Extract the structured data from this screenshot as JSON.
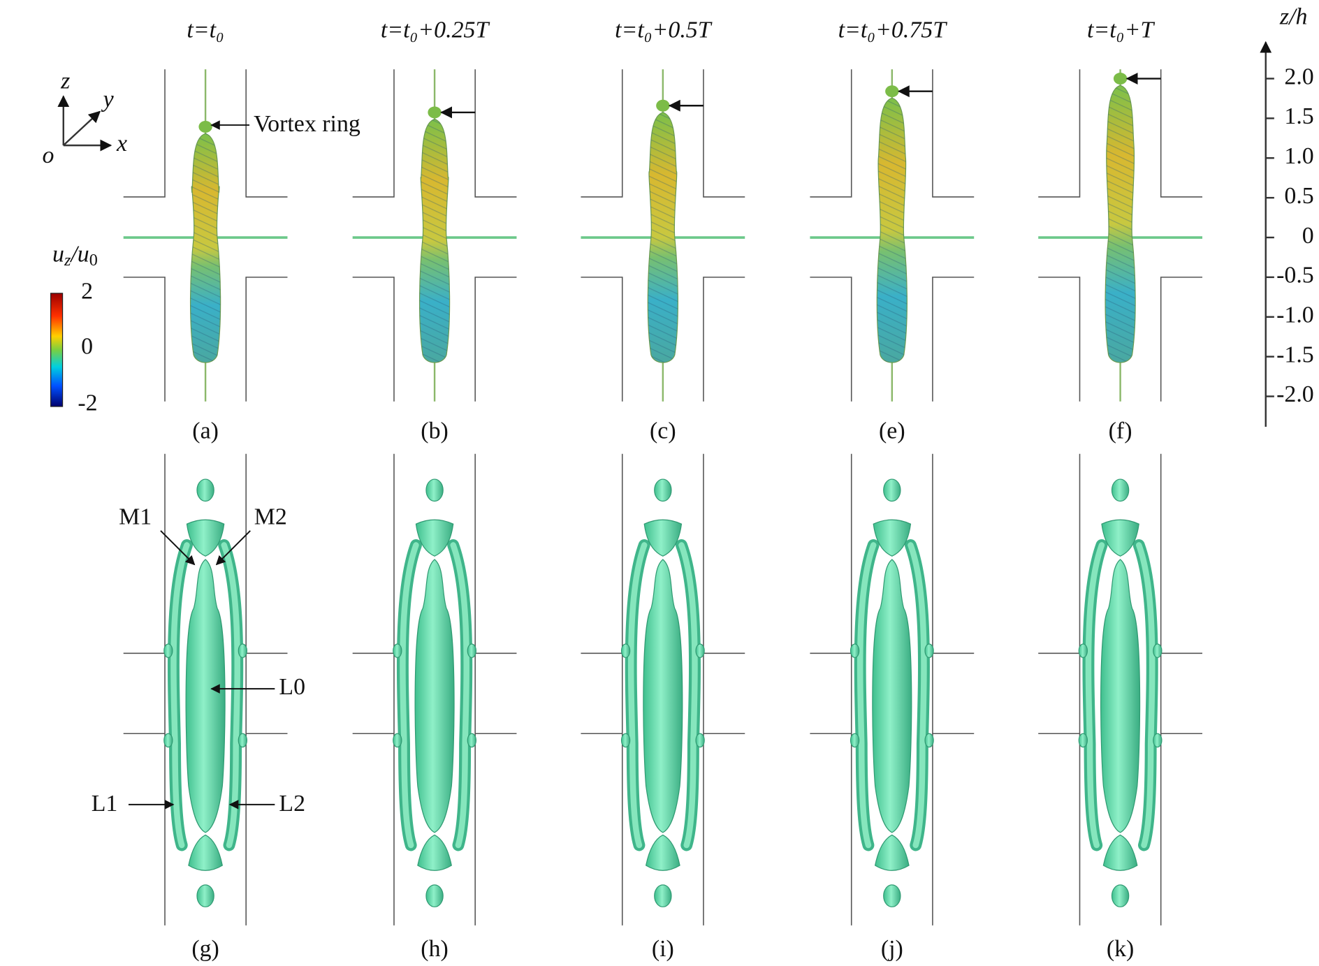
{
  "columns": [
    {
      "title": "t=t₀",
      "top_label": "(a)",
      "bottom_label": "(g)"
    },
    {
      "title": "t=t₀+0.25T",
      "top_label": "(b)",
      "bottom_label": "(h)"
    },
    {
      "title": "t=t₀+0.5T",
      "top_label": "(c)",
      "bottom_label": "(i)"
    },
    {
      "title": "t=t₀+0.75T",
      "top_label": "(e)",
      "bottom_label": "(j)"
    },
    {
      "title": "t=t₀+T",
      "top_label": "(f)",
      "bottom_label": "(k)"
    }
  ],
  "annotations": {
    "vortex_ring": "Vortex ring",
    "m1": "M1",
    "m2": "M2",
    "l0": "L0",
    "l1": "L1",
    "l2": "L2"
  },
  "colorbar": {
    "title": [
      "u",
      "z",
      "/u",
      "0"
    ],
    "labels": [
      "2",
      "0",
      "-2"
    ]
  },
  "z_axis": {
    "title": "z/h",
    "ticks": [
      "2.0",
      "1.5",
      "1.0",
      "0.5",
      "0",
      "-0.5",
      "-1.0",
      "-1.5",
      "-2.0"
    ]
  },
  "coordinate_axes": {
    "x": "x",
    "y": "y",
    "z": "z",
    "origin": "o"
  }
}
